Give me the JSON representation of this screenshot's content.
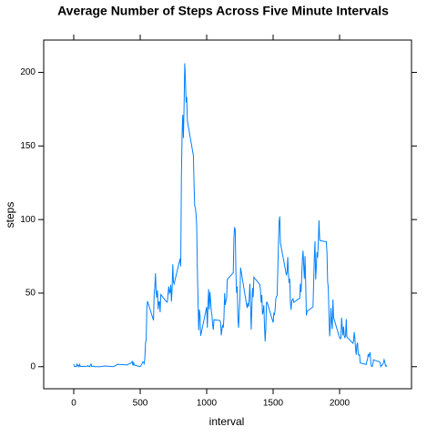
{
  "chart_data": {
    "type": "line",
    "title": "Average Number of Steps Across Five Minute Intervals",
    "xlabel": "interval",
    "ylabel": "steps",
    "xlim": [
      -226,
      2541
    ],
    "ylim": [
      -15,
      222
    ],
    "xticks": [
      0,
      500,
      1000,
      1500,
      2000
    ],
    "yticks": [
      0,
      50,
      100,
      150,
      200
    ],
    "series": [
      {
        "color": "#0080ff",
        "x": [
          0,
          5,
          10,
          15,
          20,
          25,
          30,
          35,
          40,
          45,
          50,
          55,
          100,
          105,
          110,
          115,
          120,
          125,
          130,
          135,
          140,
          145,
          150,
          155,
          200,
          230,
          300,
          330,
          400,
          430,
          440,
          445,
          450,
          455,
          500,
          515,
          520,
          525,
          530,
          535,
          540,
          545,
          550,
          555,
          600,
          605,
          610,
          615,
          620,
          625,
          630,
          635,
          640,
          645,
          650,
          655,
          700,
          705,
          710,
          715,
          720,
          725,
          730,
          735,
          740,
          745,
          750,
          755,
          800,
          805,
          810,
          815,
          820,
          825,
          830,
          835,
          840,
          845,
          850,
          855,
          900,
          905,
          910,
          915,
          920,
          925,
          930,
          935,
          940,
          945,
          950,
          955,
          1000,
          1005,
          1010,
          1015,
          1020,
          1025,
          1030,
          1035,
          1040,
          1045,
          1050,
          1055,
          1100,
          1105,
          1110,
          1115,
          1120,
          1125,
          1130,
          1135,
          1140,
          1145,
          1150,
          1155,
          1200,
          1205,
          1210,
          1215,
          1220,
          1225,
          1230,
          1235,
          1240,
          1245,
          1250,
          1255,
          1300,
          1305,
          1310,
          1315,
          1320,
          1325,
          1330,
          1335,
          1340,
          1345,
          1350,
          1355,
          1400,
          1405,
          1410,
          1415,
          1420,
          1425,
          1430,
          1435,
          1440,
          1445,
          1450,
          1455,
          1500,
          1505,
          1510,
          1515,
          1520,
          1525,
          1530,
          1535,
          1540,
          1545,
          1550,
          1555,
          1600,
          1605,
          1610,
          1615,
          1620,
          1625,
          1630,
          1635,
          1640,
          1645,
          1650,
          1655,
          1700,
          1705,
          1710,
          1715,
          1720,
          1725,
          1730,
          1735,
          1740,
          1745,
          1750,
          1755,
          1800,
          1805,
          1810,
          1815,
          1820,
          1825,
          1830,
          1835,
          1840,
          1845,
          1850,
          1855,
          1900,
          1905,
          1910,
          1915,
          1920,
          1925,
          1930,
          1935,
          1940,
          1945,
          1950,
          1955,
          2000,
          2005,
          2010,
          2015,
          2020,
          2025,
          2030,
          2035,
          2040,
          2045,
          2050,
          2055,
          2100,
          2105,
          2110,
          2115,
          2120,
          2125,
          2130,
          2135,
          2140,
          2145,
          2150,
          2155,
          2200,
          2205,
          2210,
          2215,
          2220,
          2225,
          2230,
          2235,
          2240,
          2245,
          2250,
          2255,
          2300,
          2305,
          2310,
          2315,
          2320,
          2325,
          2330,
          2335,
          2340,
          2345,
          2350,
          2355
        ],
        "values": [
          1.7,
          0.3,
          0.1,
          0.2,
          0.1,
          2.1,
          0.5,
          0.9,
          0,
          1.5,
          0.3,
          0.1,
          0.3,
          0.7,
          0.2,
          0.3,
          0,
          1.1,
          1.8,
          0.2,
          0.2,
          0.4,
          0.3,
          0,
          0,
          0.5,
          0,
          1.6,
          1.2,
          2.4,
          3.5,
          0.8,
          3.1,
          1.1,
          0,
          2.2,
          3.3,
          3,
          2.1,
          6,
          16,
          18.3,
          39.5,
          44.5,
          31.5,
          49.3,
          53.8,
          63.5,
          50,
          47,
          52,
          39,
          44,
          44,
          37,
          49,
          43.8,
          44.4,
          50.5,
          54.5,
          49.9,
          50.9,
          55.7,
          44.3,
          52.3,
          69.5,
          57.8,
          56.2,
          73.4,
          68.2,
          129.4,
          157.5,
          171.2,
          155.4,
          177.3,
          206.2,
          195.9,
          179.6,
          183.4,
          167,
          143.5,
          124,
          109.1,
          108.1,
          103.7,
          96,
          66.2,
          45.2,
          24.8,
          38.8,
          35,
          21,
          40.6,
          26.5,
          42.4,
          52.7,
          38.9,
          50.8,
          44.3,
          37.4,
          34.7,
          28.3,
          25.1,
          31.9,
          31.4,
          29.7,
          21.3,
          25.5,
          28.4,
          26.5,
          33.4,
          50,
          42,
          44.6,
          46,
          59.2,
          63.9,
          87.7,
          94.8,
          92.8,
          63.4,
          50.2,
          54.5,
          32.4,
          26.5,
          37.7,
          45.1,
          67.3,
          42.3,
          39.9,
          43.3,
          41,
          46.2,
          56.4,
          42.8,
          25.1,
          40,
          53.5,
          47.3,
          60.8,
          55.8,
          52,
          43.6,
          48.7,
          35.5,
          37.5,
          41.8,
          27.5,
          17.1,
          26.1,
          43.6,
          43.8,
          30,
          36.1,
          35.5,
          38.8,
          46,
          47.8,
          48.1,
          65.3,
          82.9,
          98.7,
          102.1,
          84,
          62.1,
          64.1,
          74.5,
          63.2,
          56.9,
          59.8,
          43.9,
          38.6,
          44.7,
          45.5,
          46.2,
          43.7,
          46.6,
          56.3,
          50.7,
          61.2,
          72.7,
          78.9,
          68.9,
          59.7,
          75.1,
          56.5,
          34.8,
          37.5,
          40.7,
          58,
          74.7,
          85.3,
          59.3,
          67.8,
          77.7,
          74.2,
          85.3,
          99.5,
          86.6,
          85.6,
          84.9,
          77.8,
          58,
          53.4,
          36.3,
          20.7,
          27.4,
          40,
          30.2,
          25.5,
          45.7,
          33.5,
          19.6,
          19,
          19.3,
          33.3,
          26.8,
          21.2,
          27.3,
          21.3,
          19.5,
          21.3,
          32.3,
          20.2,
          15.9,
          17.2,
          23.5,
          19.2,
          12.5,
          8,
          14.7,
          16.3,
          8.7,
          7.8,
          8.1,
          2.6,
          1.5,
          3.7,
          4.8,
          8.5,
          7.1,
          8.7,
          9.8,
          2.2,
          0.3,
          0.1,
          1.6,
          4.6,
          3.3,
          2.8,
          0,
          0.8,
          1,
          1.6,
          2.6,
          4.7,
          3.3,
          0.6,
          0.2,
          1.1
        ]
      }
    ]
  }
}
